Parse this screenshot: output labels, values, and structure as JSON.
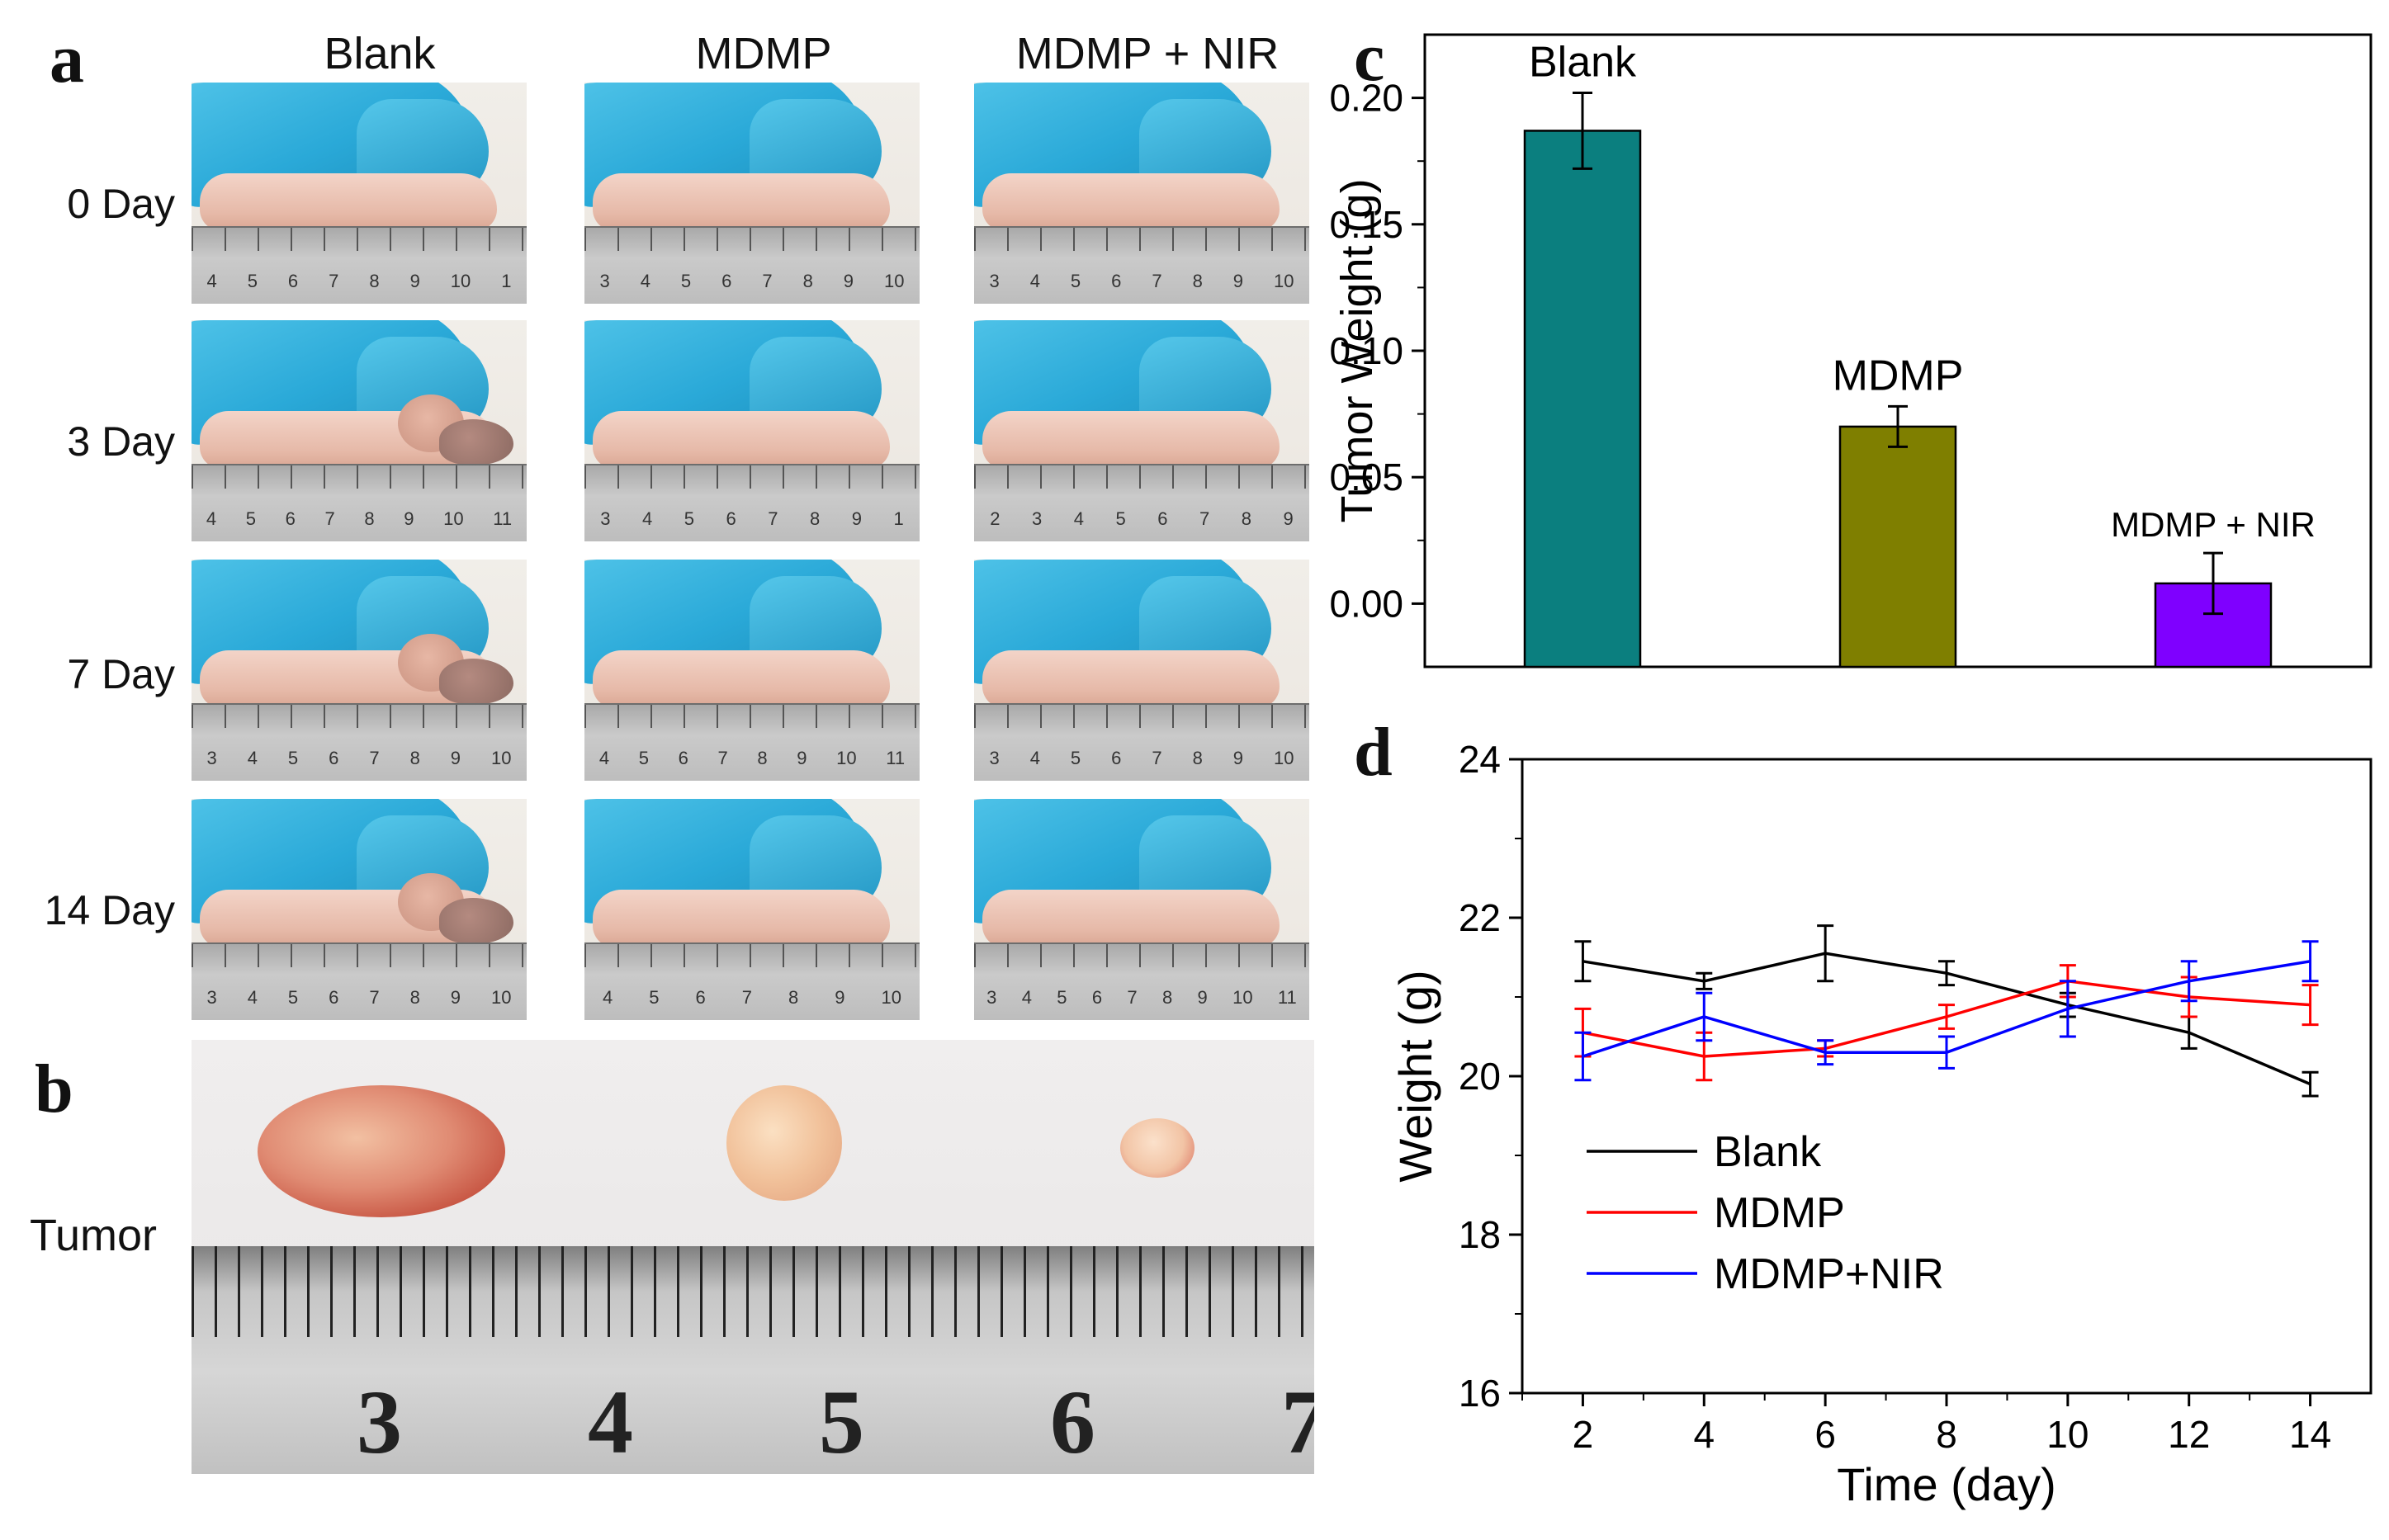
{
  "panel_a": {
    "letter": "a",
    "columns": [
      "Blank",
      "MDMP",
      "MDMP + NIR"
    ],
    "rows": [
      "0 Day",
      "3 Day",
      "7 Day",
      "14 Day"
    ],
    "ruler_numbers": [
      [
        [
          "4",
          "5",
          "6",
          "7",
          "8",
          "9",
          "10",
          "1"
        ],
        [
          "3",
          "4",
          "5",
          "6",
          "7",
          "8",
          "9",
          "10"
        ],
        [
          "3",
          "4",
          "5",
          "6",
          "7",
          "8",
          "9",
          "10"
        ]
      ],
      [
        [
          "4",
          "5",
          "6",
          "7",
          "8",
          "9",
          "10",
          "11"
        ],
        [
          "3",
          "4",
          "5",
          "6",
          "7",
          "8",
          "9",
          "1"
        ],
        [
          "2",
          "3",
          "4",
          "5",
          "6",
          "7",
          "8",
          "9"
        ]
      ],
      [
        [
          "3",
          "4",
          "5",
          "6",
          "7",
          "8",
          "9",
          "10"
        ],
        [
          "4",
          "5",
          "6",
          "7",
          "8",
          "9",
          "10",
          "11"
        ],
        [
          "3",
          "4",
          "5",
          "6",
          "7",
          "8",
          "9",
          "10"
        ]
      ],
      [
        [
          "3",
          "4",
          "5",
          "6",
          "7",
          "8",
          "9",
          "10"
        ],
        [
          "4",
          "5",
          "6",
          "7",
          "8",
          "9",
          "10"
        ],
        [
          "3",
          "4",
          "5",
          "6",
          "7",
          "8",
          "9",
          "10",
          "11"
        ]
      ]
    ]
  },
  "panel_b": {
    "letter": "b",
    "label": "Tumor",
    "ruler_numbers": [
      "3",
      "4",
      "5",
      "6",
      "7"
    ]
  },
  "chart_data": [
    {
      "panel": "c",
      "type": "bar",
      "categories": [
        "Blank",
        "MDMP",
        "MDMP + NIR"
      ],
      "values": [
        0.187,
        0.07,
        0.008
      ],
      "errors": [
        0.015,
        0.008,
        0.012
      ],
      "colors": [
        "#0b7f7f",
        "#7f7f00",
        "#7f00ff"
      ],
      "ylabel": "Tumor Weight (g)",
      "ylim": [
        -0.025,
        0.225
      ],
      "yticks": [
        "0.00",
        "0.05",
        "0.10",
        "0.15",
        "0.20"
      ],
      "ytick_values": [
        0.0,
        0.05,
        0.1,
        0.15,
        0.2
      ],
      "bar_labels": [
        "Blank",
        "MDMP",
        "MDMP + NIR"
      ]
    },
    {
      "panel": "d",
      "type": "line",
      "x": [
        2,
        4,
        6,
        8,
        10,
        12,
        14
      ],
      "xlabel": "Time (day)",
      "ylabel": "Weight (g)",
      "xlim": [
        1,
        15
      ],
      "ylim": [
        16,
        24
      ],
      "xticks": [
        "2",
        "4",
        "6",
        "8",
        "10",
        "12",
        "14"
      ],
      "yticks": [
        "16",
        "18",
        "20",
        "22",
        "24"
      ],
      "series": [
        {
          "name": "Blank",
          "color": "#000000",
          "values": [
            21.45,
            21.2,
            21.55,
            21.3,
            20.9,
            20.55,
            19.9
          ],
          "errors": [
            0.25,
            0.1,
            0.35,
            0.15,
            0.15,
            0.2,
            0.15
          ]
        },
        {
          "name": "MDMP",
          "color": "#ff0000",
          "values": [
            20.55,
            20.25,
            20.35,
            20.75,
            21.2,
            21.0,
            20.9
          ],
          "errors": [
            0.3,
            0.3,
            0.1,
            0.15,
            0.2,
            0.25,
            0.25
          ]
        },
        {
          "name": "MDMP+NIR",
          "color": "#0000ff",
          "values": [
            20.25,
            20.75,
            20.3,
            20.3,
            20.85,
            21.2,
            21.45
          ],
          "errors": [
            0.3,
            0.3,
            0.15,
            0.2,
            0.35,
            0.25,
            0.25
          ]
        }
      ],
      "legend": "bottom-left"
    }
  ]
}
